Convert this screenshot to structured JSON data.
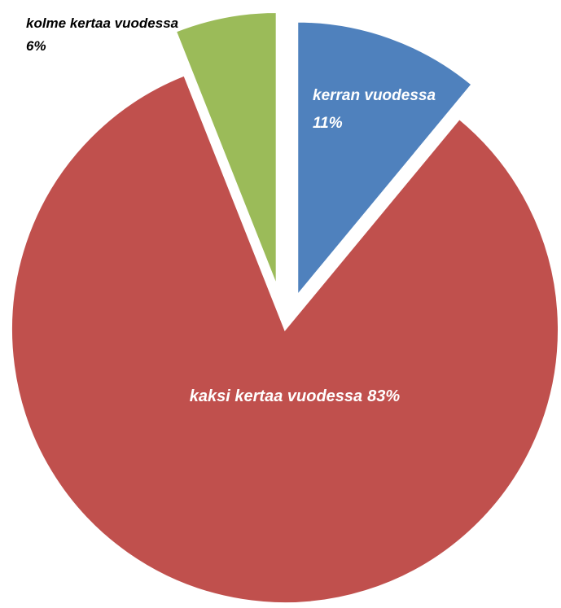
{
  "chart_data": {
    "type": "pie",
    "categories": [
      "kerran vuodessa",
      "kaksi kertaa vuodessa",
      "kolme kertaa vuodessa"
    ],
    "values": [
      11,
      83,
      6
    ],
    "value_labels": [
      "11%",
      "83%",
      "6%"
    ],
    "colors": [
      "#4f81bd",
      "#c0504d",
      "#9bbb59"
    ]
  }
}
